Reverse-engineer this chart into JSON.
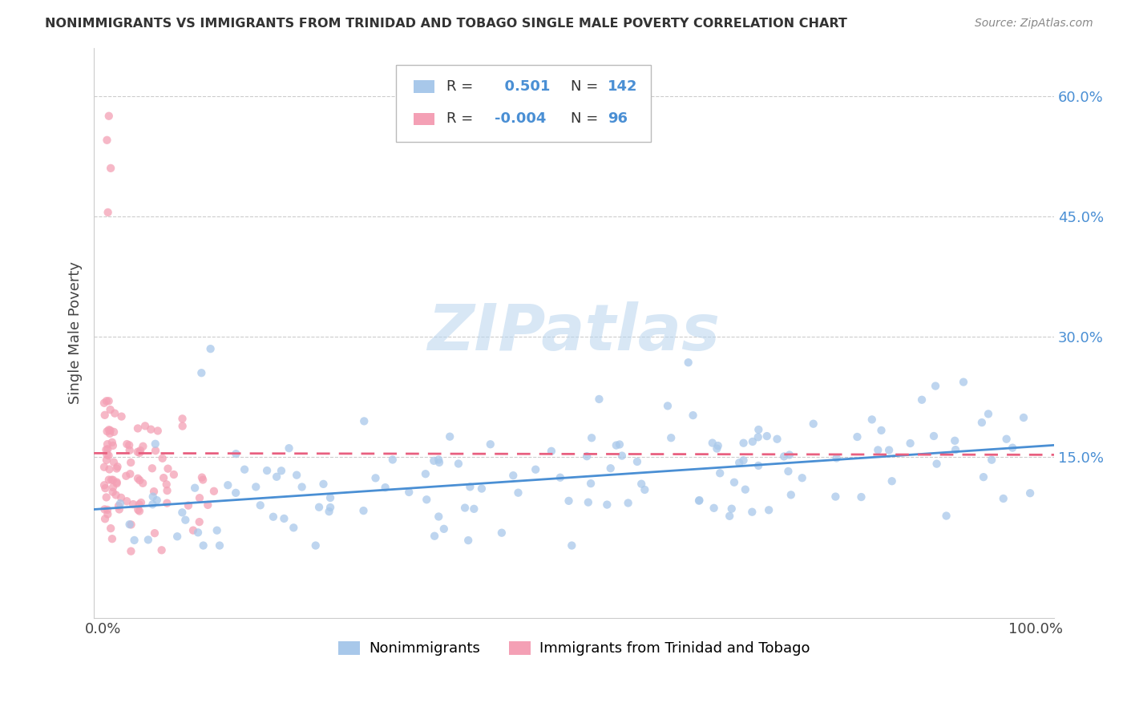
{
  "title": "NONIMMIGRANTS VS IMMIGRANTS FROM TRINIDAD AND TOBAGO SINGLE MALE POVERTY CORRELATION CHART",
  "source": "Source: ZipAtlas.com",
  "ylabel": "Single Male Poverty",
  "ytick_positions": [
    0.15,
    0.3,
    0.45,
    0.6
  ],
  "ytick_labels": [
    "15.0%",
    "30.0%",
    "45.0%",
    "60.0%"
  ],
  "xlim": [
    -0.01,
    1.02
  ],
  "ylim": [
    -0.05,
    0.66
  ],
  "nonimmigrant_color": "#a8c8ea",
  "immigrant_color": "#f4a0b5",
  "nonimmigrant_line_color": "#4a8fd4",
  "immigrant_line_color": "#e86080",
  "R_nonimmigrant": 0.501,
  "N_nonimmigrant": 142,
  "R_immigrant": -0.004,
  "N_immigrant": 96,
  "watermark_text": "ZIPatlas",
  "legend_label_1": "Nonimmigrants",
  "legend_label_2": "Immigrants from Trinidad and Tobago",
  "nonimmigrant_seed": 101,
  "immigrant_seed": 202,
  "trend_ni_y0": 0.085,
  "trend_ni_y1": 0.165,
  "trend_imm_y": 0.155,
  "grid_color": "#cccccc",
  "grid_linestyle": "--",
  "grid_linewidth": 0.8,
  "scatter_size": 55,
  "scatter_alpha": 0.75
}
